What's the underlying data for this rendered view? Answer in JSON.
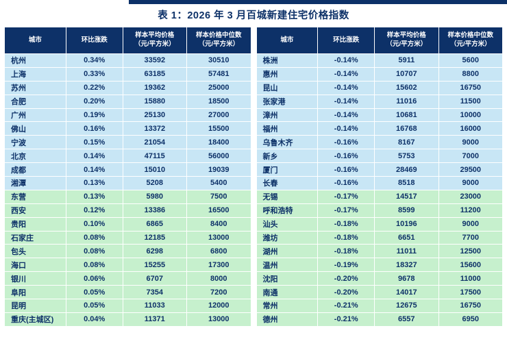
{
  "title": "表 1：2026 年 3 月百城新建住宅价格指数",
  "colors": {
    "header_bg": "#0d3168",
    "row_blue": "#c8e6f5",
    "row_green": "#c6f0cd",
    "text": "#0d3168",
    "divider": "#0d3168"
  },
  "columns": [
    {
      "label": "城市",
      "sub": ""
    },
    {
      "label": "环比涨跌",
      "sub": ""
    },
    {
      "label": "样本平均价格",
      "sub": "（元/平方米）"
    },
    {
      "label": "样本价格中位数",
      "sub": "（元/平方米）"
    }
  ],
  "left_table": {
    "rows": [
      {
        "city": "杭州",
        "change": "0.34%",
        "avg": "33592",
        "median": "30510",
        "group": "blue"
      },
      {
        "city": "上海",
        "change": "0.33%",
        "avg": "63185",
        "median": "57481",
        "group": "blue"
      },
      {
        "city": "苏州",
        "change": "0.22%",
        "avg": "19362",
        "median": "25000",
        "group": "blue"
      },
      {
        "city": "合肥",
        "change": "0.20%",
        "avg": "15880",
        "median": "18500",
        "group": "blue"
      },
      {
        "city": "广州",
        "change": "0.19%",
        "avg": "25130",
        "median": "27000",
        "group": "blue"
      },
      {
        "city": "佛山",
        "change": "0.16%",
        "avg": "13372",
        "median": "15500",
        "group": "blue"
      },
      {
        "city": "宁波",
        "change": "0.15%",
        "avg": "21054",
        "median": "18400",
        "group": "blue"
      },
      {
        "city": "北京",
        "change": "0.14%",
        "avg": "47115",
        "median": "56000",
        "group": "blue"
      },
      {
        "city": "成都",
        "change": "0.14%",
        "avg": "15010",
        "median": "19039",
        "group": "blue"
      },
      {
        "city": "湘潭",
        "change": "0.13%",
        "avg": "5208",
        "median": "5400",
        "group": "blue"
      },
      {
        "city": "东营",
        "change": "0.13%",
        "avg": "5980",
        "median": "7500",
        "group": "green"
      },
      {
        "city": "西安",
        "change": "0.12%",
        "avg": "13386",
        "median": "16500",
        "group": "green"
      },
      {
        "city": "贵阳",
        "change": "0.10%",
        "avg": "6865",
        "median": "8400",
        "group": "green"
      },
      {
        "city": "石家庄",
        "change": "0.08%",
        "avg": "12185",
        "median": "13000",
        "group": "green"
      },
      {
        "city": "包头",
        "change": "0.08%",
        "avg": "6298",
        "median": "6800",
        "group": "green"
      },
      {
        "city": "海口",
        "change": "0.08%",
        "avg": "15255",
        "median": "17300",
        "group": "green"
      },
      {
        "city": "银川",
        "change": "0.06%",
        "avg": "6707",
        "median": "8000",
        "group": "green"
      },
      {
        "city": "阜阳",
        "change": "0.05%",
        "avg": "7354",
        "median": "7200",
        "group": "green"
      },
      {
        "city": "昆明",
        "change": "0.05%",
        "avg": "11033",
        "median": "12000",
        "group": "green"
      },
      {
        "city": "重庆(主城区)",
        "change": "0.04%",
        "avg": "11371",
        "median": "13000",
        "group": "green"
      }
    ]
  },
  "right_table": {
    "rows": [
      {
        "city": "株洲",
        "change": "-0.14%",
        "avg": "5911",
        "median": "5600",
        "group": "blue"
      },
      {
        "city": "惠州",
        "change": "-0.14%",
        "avg": "10707",
        "median": "8800",
        "group": "blue"
      },
      {
        "city": "昆山",
        "change": "-0.14%",
        "avg": "15602",
        "median": "16750",
        "group": "blue"
      },
      {
        "city": "张家港",
        "change": "-0.14%",
        "avg": "11016",
        "median": "11500",
        "group": "blue"
      },
      {
        "city": "漳州",
        "change": "-0.14%",
        "avg": "10681",
        "median": "10000",
        "group": "blue"
      },
      {
        "city": "福州",
        "change": "-0.14%",
        "avg": "16768",
        "median": "16000",
        "group": "blue"
      },
      {
        "city": "乌鲁木齐",
        "change": "-0.16%",
        "avg": "8167",
        "median": "9000",
        "group": "blue"
      },
      {
        "city": "新乡",
        "change": "-0.16%",
        "avg": "5753",
        "median": "7000",
        "group": "blue"
      },
      {
        "city": "厦门",
        "change": "-0.16%",
        "avg": "28469",
        "median": "29500",
        "group": "blue"
      },
      {
        "city": "长春",
        "change": "-0.16%",
        "avg": "8518",
        "median": "9000",
        "group": "blue"
      },
      {
        "city": "无锡",
        "change": "-0.17%",
        "avg": "14517",
        "median": "23000",
        "group": "green"
      },
      {
        "city": "呼和浩特",
        "change": "-0.17%",
        "avg": "8599",
        "median": "11200",
        "group": "green"
      },
      {
        "city": "汕头",
        "change": "-0.18%",
        "avg": "10196",
        "median": "9000",
        "group": "green"
      },
      {
        "city": "潍坊",
        "change": "-0.18%",
        "avg": "6651",
        "median": "7700",
        "group": "green"
      },
      {
        "city": "湖州",
        "change": "-0.18%",
        "avg": "11011",
        "median": "12500",
        "group": "green"
      },
      {
        "city": "温州",
        "change": "-0.19%",
        "avg": "18327",
        "median": "15600",
        "group": "green"
      },
      {
        "city": "沈阳",
        "change": "-0.20%",
        "avg": "9678",
        "median": "11000",
        "group": "green"
      },
      {
        "city": "南通",
        "change": "-0.20%",
        "avg": "14017",
        "median": "17500",
        "group": "green"
      },
      {
        "city": "常州",
        "change": "-0.21%",
        "avg": "12675",
        "median": "16750",
        "group": "green"
      },
      {
        "city": "德州",
        "change": "-0.21%",
        "avg": "6557",
        "median": "6950",
        "group": "green"
      }
    ]
  }
}
